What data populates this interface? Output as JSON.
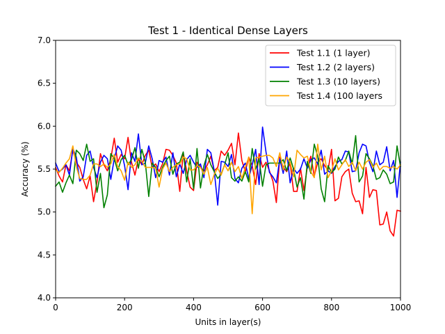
{
  "chart_data": {
    "type": "line",
    "title": "Test 1 - Identical Dense Layers",
    "xlabel": "Units in layer(s)",
    "ylabel": "Accuracy (%)",
    "xlim": [
      0,
      1000
    ],
    "ylim": [
      4.0,
      7.0
    ],
    "xticks": [
      "0",
      "200",
      "400",
      "600",
      "800",
      "1000"
    ],
    "yticks": [
      "4.0",
      "4.5",
      "5.0",
      "5.5",
      "6.0",
      "6.5",
      "7.0"
    ],
    "grid": false,
    "legend_position": "top-right",
    "x": [
      0,
      10,
      20,
      30,
      40,
      50,
      60,
      70,
      80,
      90,
      100,
      110,
      120,
      130,
      140,
      150,
      160,
      170,
      180,
      190,
      200,
      210,
      220,
      230,
      240,
      250,
      260,
      270,
      280,
      290,
      300,
      310,
      320,
      330,
      340,
      350,
      360,
      370,
      380,
      390,
      400,
      410,
      420,
      430,
      440,
      450,
      460,
      470,
      480,
      490,
      500,
      510,
      520,
      530,
      540,
      550,
      560,
      570,
      580,
      590,
      600,
      610,
      620,
      630,
      640,
      650,
      660,
      670,
      680,
      690,
      700,
      710,
      720,
      730,
      740,
      750,
      760,
      770,
      780,
      790,
      800,
      810,
      820,
      830,
      840,
      850,
      860,
      870,
      880,
      890,
      900,
      910,
      920,
      930,
      940,
      950,
      960,
      970,
      980,
      990,
      1000
    ],
    "series": [
      {
        "name": "Test 1.1 (1 layer)",
        "color": "#ff0000",
        "values": [
          5.52,
          5.42,
          5.35,
          5.55,
          5.48,
          5.72,
          5.58,
          5.52,
          5.38,
          5.27,
          5.42,
          5.12,
          5.35,
          5.68,
          5.55,
          5.48,
          5.62,
          5.86,
          5.58,
          5.67,
          5.62,
          5.87,
          5.58,
          5.43,
          5.62,
          5.55,
          5.66,
          5.72,
          5.52,
          5.56,
          5.47,
          5.56,
          5.73,
          5.72,
          5.66,
          5.57,
          5.24,
          5.69,
          5.48,
          5.29,
          5.25,
          5.58,
          5.52,
          5.48,
          5.55,
          5.65,
          5.48,
          5.52,
          5.71,
          5.66,
          5.72,
          5.8,
          5.55,
          5.92,
          5.6,
          5.47,
          5.64,
          5.54,
          5.32,
          5.68,
          5.52,
          5.58,
          5.48,
          5.36,
          5.11,
          5.64,
          5.52,
          5.47,
          5.57,
          5.24,
          5.24,
          5.51,
          5.25,
          5.53,
          5.65,
          5.42,
          5.58,
          5.62,
          5.54,
          5.49,
          5.73,
          5.13,
          5.16,
          5.41,
          5.47,
          5.5,
          5.22,
          5.12,
          5.13,
          4.98,
          5.52,
          5.17,
          5.26,
          5.25,
          4.85,
          4.86,
          5.0,
          4.78,
          4.72,
          5.02,
          5.01
        ]
      },
      {
        "name": "Test 1.2 (2 layers)",
        "color": "#0000ff",
        "values": [
          5.57,
          5.47,
          5.5,
          5.55,
          5.43,
          5.74,
          5.64,
          5.36,
          5.41,
          5.66,
          5.71,
          5.52,
          5.4,
          5.58,
          5.66,
          5.62,
          5.38,
          5.62,
          5.77,
          5.72,
          5.54,
          5.26,
          5.69,
          5.59,
          5.91,
          5.55,
          5.57,
          5.77,
          5.62,
          5.4,
          5.6,
          5.58,
          5.64,
          5.43,
          5.69,
          5.41,
          5.56,
          5.45,
          5.61,
          5.66,
          5.58,
          5.52,
          5.56,
          5.4,
          5.73,
          5.69,
          5.48,
          5.08,
          5.59,
          5.58,
          5.53,
          5.67,
          5.39,
          5.34,
          5.51,
          5.57,
          5.39,
          5.55,
          5.73,
          5.32,
          5.99,
          5.7,
          5.46,
          5.41,
          5.34,
          5.62,
          5.45,
          5.71,
          5.34,
          5.51,
          5.45,
          5.5,
          5.62,
          5.51,
          5.61,
          5.63,
          5.56,
          5.72,
          5.44,
          5.48,
          5.45,
          5.53,
          5.59,
          5.61,
          5.71,
          5.7,
          5.47,
          5.48,
          5.69,
          5.79,
          5.77,
          5.58,
          5.47,
          5.71,
          5.55,
          5.58,
          5.76,
          5.48,
          5.6,
          5.17,
          5.58
        ]
      },
      {
        "name": "Test 1.3 (10 layers)",
        "color": "#008000",
        "values": [
          5.3,
          5.35,
          5.23,
          5.34,
          5.43,
          5.33,
          5.72,
          5.68,
          5.6,
          5.79,
          5.59,
          5.62,
          5.23,
          5.45,
          5.05,
          5.2,
          5.68,
          5.62,
          5.48,
          5.61,
          5.66,
          5.55,
          5.61,
          5.75,
          5.51,
          5.73,
          5.58,
          5.18,
          5.57,
          5.52,
          5.41,
          5.52,
          5.6,
          5.65,
          5.44,
          5.56,
          5.58,
          5.7,
          5.35,
          5.62,
          5.27,
          5.74,
          5.28,
          5.54,
          5.67,
          5.55,
          5.47,
          5.39,
          5.44,
          5.55,
          5.69,
          5.4,
          5.36,
          5.41,
          5.36,
          5.47,
          5.35,
          5.74,
          5.5,
          5.62,
          5.3,
          5.55,
          5.57,
          5.57,
          5.57,
          5.57,
          5.61,
          5.48,
          5.63,
          5.5,
          5.29,
          5.4,
          5.15,
          5.59,
          5.45,
          5.79,
          5.65,
          5.27,
          5.12,
          5.54,
          5.46,
          5.5,
          5.64,
          5.56,
          5.6,
          5.71,
          5.56,
          5.89,
          5.35,
          5.42,
          5.68,
          5.62,
          5.54,
          5.38,
          5.4,
          5.49,
          5.44,
          5.33,
          5.35,
          5.77,
          5.53
        ]
      },
      {
        "name": "Test 1.4 (100 layers",
        "color": "#ffa500",
        "values": [
          5.49,
          5.46,
          5.51,
          5.57,
          5.62,
          5.77,
          5.53,
          5.39,
          5.38,
          5.38,
          5.43,
          5.56,
          5.56,
          5.53,
          5.56,
          5.52,
          5.56,
          5.67,
          5.53,
          5.48,
          5.37,
          5.58,
          5.52,
          5.55,
          5.63,
          5.59,
          5.52,
          5.52,
          5.52,
          5.51,
          5.29,
          5.5,
          5.57,
          5.47,
          5.52,
          5.55,
          5.56,
          5.64,
          5.62,
          5.49,
          5.49,
          5.54,
          5.52,
          5.44,
          5.52,
          5.32,
          5.44,
          5.51,
          5.43,
          5.55,
          5.48,
          5.58,
          5.47,
          5.53,
          5.39,
          5.52,
          5.64,
          4.98,
          5.63,
          5.64,
          5.65,
          5.66,
          5.66,
          5.63,
          5.53,
          5.69,
          5.49,
          5.64,
          5.58,
          5.41,
          5.72,
          5.67,
          5.63,
          5.65,
          5.47,
          5.4,
          5.79,
          5.49,
          5.65,
          5.4,
          5.48,
          5.62,
          5.49,
          5.55,
          5.61,
          5.53,
          5.58,
          5.48,
          5.58,
          5.5,
          5.58,
          5.61,
          5.52,
          5.57,
          5.49,
          5.53,
          5.53,
          5.51,
          5.53,
          5.5,
          5.55
        ]
      }
    ]
  }
}
